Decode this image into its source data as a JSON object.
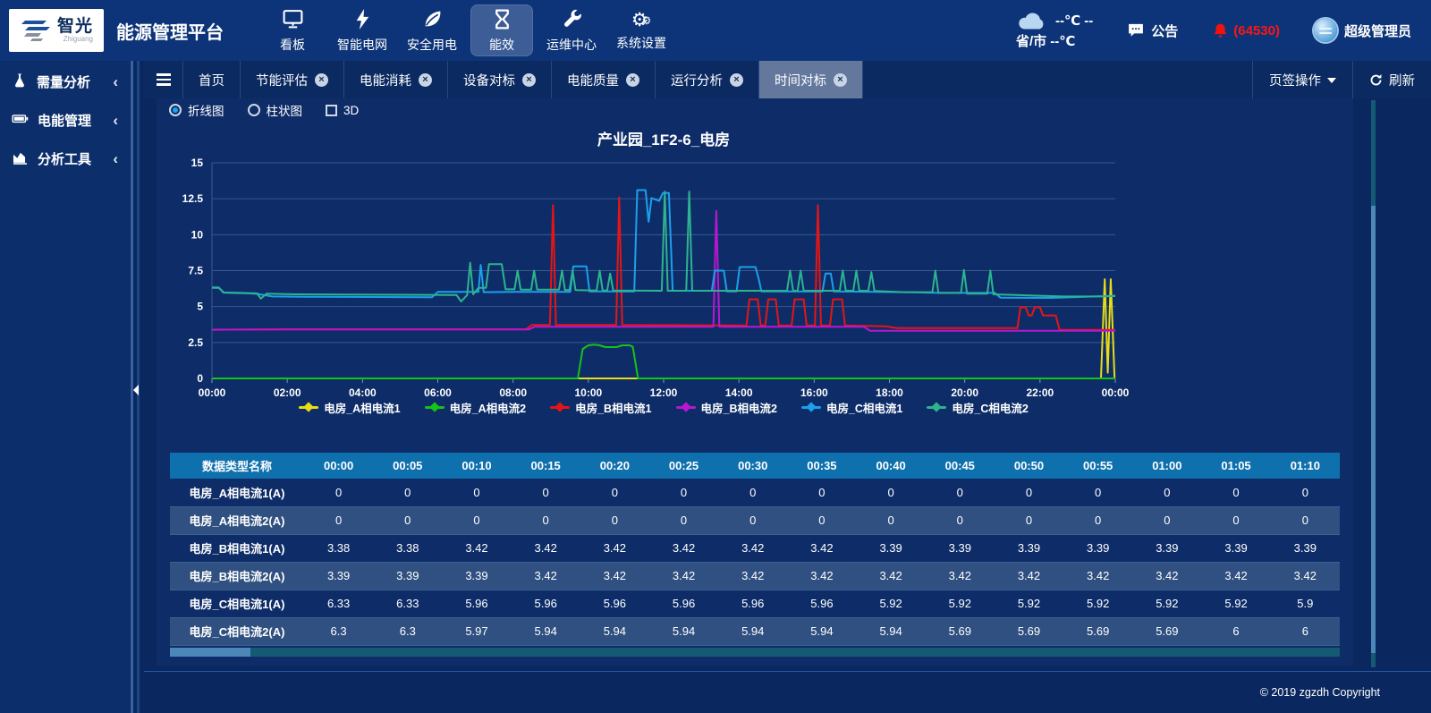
{
  "header": {
    "logo": {
      "brand": "智光",
      "brand_sub": "Zhiguang"
    },
    "app_title": "能源管理平台",
    "nav": [
      {
        "label": "看板",
        "icon": "dashboard-icon",
        "active": false
      },
      {
        "label": "智能电网",
        "icon": "bolt-icon",
        "active": false
      },
      {
        "label": "安全用电",
        "icon": "leaf-icon",
        "active": false
      },
      {
        "label": "能效",
        "icon": "hourglass-icon",
        "active": true
      },
      {
        "label": "运维中心",
        "icon": "wrench-icon",
        "active": false
      },
      {
        "label": "系统设置",
        "icon": "gears-icon",
        "active": false
      }
    ],
    "weather": {
      "line1": "--℃ --",
      "line2": "省/市 --℃"
    },
    "notice_label": "公告",
    "alarm_count": "(64530)",
    "user_name": "超级管理员"
  },
  "tabbar": {
    "tabs": [
      {
        "label": "首页",
        "closable": false,
        "active": false
      },
      {
        "label": "节能评估",
        "closable": true,
        "active": false
      },
      {
        "label": "电能消耗",
        "closable": true,
        "active": false
      },
      {
        "label": "设备对标",
        "closable": true,
        "active": false
      },
      {
        "label": "电能质量",
        "closable": true,
        "active": false
      },
      {
        "label": "运行分析",
        "closable": true,
        "active": false
      },
      {
        "label": "时间对标",
        "closable": true,
        "active": true
      }
    ],
    "actions": {
      "tab_ops": "页签操作",
      "refresh": "刷新"
    }
  },
  "sidebar": {
    "items": [
      {
        "label": "需量分析",
        "icon": "flask-icon"
      },
      {
        "label": "电能管理",
        "icon": "battery-icon"
      },
      {
        "label": "分析工具",
        "icon": "chart-icon"
      }
    ]
  },
  "controls": {
    "options": [
      {
        "label": "折线图",
        "type": "radio",
        "checked": true
      },
      {
        "label": "柱状图",
        "type": "radio",
        "checked": false
      },
      {
        "label": "3D",
        "type": "checkbox",
        "checked": false
      }
    ]
  },
  "chart_data": {
    "type": "line",
    "title": "产业园_1F2-6_电房",
    "xlim": [
      0,
      24
    ],
    "ylim": [
      0,
      15
    ],
    "y_ticks": [
      0,
      2.5,
      5,
      7.5,
      10,
      12.5,
      15
    ],
    "x_ticks": [
      "00:00",
      "02:00",
      "04:00",
      "06:00",
      "08:00",
      "10:00",
      "12:00",
      "14:00",
      "16:00",
      "18:00",
      "20:00",
      "22:00",
      "00:00"
    ],
    "grid": true,
    "legend_position": "bottom",
    "series": [
      {
        "name": "电房_A相电流1",
        "color": "#e8dc16",
        "points": [
          [
            0,
            0
          ],
          [
            23.62,
            0
          ],
          [
            23.72,
            6.9
          ],
          [
            23.8,
            0.4
          ],
          [
            23.88,
            6.9
          ],
          [
            23.98,
            0
          ],
          [
            24,
            0
          ]
        ]
      },
      {
        "name": "电房_A相电流2",
        "color": "#16c316",
        "points": [
          [
            0,
            0
          ],
          [
            9.72,
            0
          ],
          [
            9.85,
            2.05
          ],
          [
            10.0,
            2.3
          ],
          [
            10.15,
            2.35
          ],
          [
            10.3,
            2.3
          ],
          [
            10.45,
            2.18
          ],
          [
            10.75,
            2.18
          ],
          [
            10.9,
            2.3
          ],
          [
            11.1,
            2.3
          ],
          [
            11.18,
            2.2
          ],
          [
            11.32,
            0
          ],
          [
            24,
            0
          ]
        ]
      },
      {
        "name": "电房_B相电流1",
        "color": "#e81414",
        "points": [
          [
            0,
            3.38
          ],
          [
            0.6,
            3.4
          ],
          [
            2,
            3.42
          ],
          [
            8.35,
            3.42
          ],
          [
            8.5,
            3.72
          ],
          [
            8.98,
            3.72
          ],
          [
            9.06,
            12.05
          ],
          [
            9.14,
            3.72
          ],
          [
            10.74,
            3.72
          ],
          [
            10.82,
            12.6
          ],
          [
            10.9,
            3.72
          ],
          [
            14.2,
            3.68
          ],
          [
            14.28,
            5.5
          ],
          [
            14.5,
            5.5
          ],
          [
            14.58,
            3.68
          ],
          [
            14.7,
            3.68
          ],
          [
            14.78,
            5.5
          ],
          [
            14.98,
            5.5
          ],
          [
            15.06,
            3.68
          ],
          [
            15.4,
            3.68
          ],
          [
            15.48,
            5.5
          ],
          [
            15.72,
            5.5
          ],
          [
            15.8,
            3.68
          ],
          [
            16.02,
            3.68
          ],
          [
            16.1,
            12.05
          ],
          [
            16.18,
            3.68
          ],
          [
            16.42,
            3.68
          ],
          [
            16.5,
            5.5
          ],
          [
            16.74,
            5.5
          ],
          [
            16.82,
            3.68
          ],
          [
            17.9,
            3.62
          ],
          [
            18.2,
            3.5
          ],
          [
            21.4,
            3.5
          ],
          [
            21.48,
            4.95
          ],
          [
            21.62,
            4.95
          ],
          [
            21.7,
            4.38
          ],
          [
            21.78,
            4.38
          ],
          [
            21.86,
            4.95
          ],
          [
            22.0,
            4.95
          ],
          [
            22.08,
            4.38
          ],
          [
            22.42,
            4.38
          ],
          [
            22.52,
            3.38
          ],
          [
            24,
            3.38
          ]
        ]
      },
      {
        "name": "电房_B相电流2",
        "color": "#bb16cf",
        "points": [
          [
            0,
            3.39
          ],
          [
            2,
            3.41
          ],
          [
            8.42,
            3.41
          ],
          [
            8.58,
            3.6
          ],
          [
            13.32,
            3.6
          ],
          [
            13.4,
            11.65
          ],
          [
            13.48,
            3.6
          ],
          [
            17.32,
            3.6
          ],
          [
            17.48,
            3.32
          ],
          [
            24,
            3.32
          ]
        ]
      },
      {
        "name": "电房_C相电流1",
        "color": "#1ba0ea",
        "points": [
          [
            0,
            6.33
          ],
          [
            0.18,
            6.33
          ],
          [
            0.3,
            5.98
          ],
          [
            0.8,
            5.95
          ],
          [
            1.2,
            5.88
          ],
          [
            1.6,
            5.7
          ],
          [
            2.4,
            5.68
          ],
          [
            5.85,
            5.65
          ],
          [
            6.0,
            6.02
          ],
          [
            6.95,
            6.02
          ],
          [
            7.08,
            6.02
          ],
          [
            7.14,
            7.9
          ],
          [
            7.22,
            6.0
          ],
          [
            8.0,
            6.02
          ],
          [
            9.52,
            6.02
          ],
          [
            9.6,
            7.8
          ],
          [
            9.95,
            7.8
          ],
          [
            10.03,
            6.05
          ],
          [
            11.22,
            6.05
          ],
          [
            11.3,
            13.1
          ],
          [
            11.52,
            13.1
          ],
          [
            11.6,
            10.9
          ],
          [
            11.68,
            12.55
          ],
          [
            11.88,
            12.35
          ],
          [
            11.98,
            12.9
          ],
          [
            12.14,
            12.9
          ],
          [
            12.24,
            6.1
          ],
          [
            13.28,
            6.1
          ],
          [
            13.36,
            7.5
          ],
          [
            13.6,
            7.5
          ],
          [
            13.68,
            6.05
          ],
          [
            13.94,
            6.05
          ],
          [
            14.02,
            7.75
          ],
          [
            14.44,
            7.75
          ],
          [
            14.52,
            7.0
          ],
          [
            14.6,
            6.05
          ],
          [
            16.22,
            6.05
          ],
          [
            16.3,
            7.3
          ],
          [
            16.44,
            7.3
          ],
          [
            16.52,
            6.05
          ],
          [
            18.5,
            6.0
          ],
          [
            19.3,
            5.95
          ],
          [
            20.8,
            5.95
          ],
          [
            20.95,
            5.62
          ],
          [
            22.3,
            5.6
          ],
          [
            23.2,
            5.68
          ],
          [
            24,
            5.75
          ]
        ]
      },
      {
        "name": "电房_C相电流2",
        "color": "#2db48e",
        "points": [
          [
            0,
            6.3
          ],
          [
            0.18,
            6.3
          ],
          [
            0.32,
            5.97
          ],
          [
            0.7,
            5.94
          ],
          [
            1.2,
            5.92
          ],
          [
            1.3,
            5.55
          ],
          [
            1.45,
            5.9
          ],
          [
            2.2,
            5.85
          ],
          [
            5.0,
            5.82
          ],
          [
            6.5,
            5.8
          ],
          [
            6.62,
            5.35
          ],
          [
            6.78,
            5.8
          ],
          [
            6.86,
            8.05
          ],
          [
            6.94,
            5.85
          ],
          [
            7.08,
            6.3
          ],
          [
            7.28,
            6.3
          ],
          [
            7.36,
            7.95
          ],
          [
            7.7,
            7.95
          ],
          [
            7.8,
            6.2
          ],
          [
            8.04,
            6.2
          ],
          [
            8.12,
            7.5
          ],
          [
            8.2,
            6.18
          ],
          [
            8.48,
            6.18
          ],
          [
            8.56,
            7.5
          ],
          [
            8.64,
            6.18
          ],
          [
            9.22,
            6.18
          ],
          [
            9.3,
            7.5
          ],
          [
            9.38,
            6.15
          ],
          [
            9.5,
            6.15
          ],
          [
            9.58,
            7.5
          ],
          [
            9.66,
            6.15
          ],
          [
            10.22,
            6.12
          ],
          [
            10.3,
            7.5
          ],
          [
            10.38,
            6.12
          ],
          [
            10.5,
            6.12
          ],
          [
            10.58,
            7.3
          ],
          [
            10.66,
            6.12
          ],
          [
            11.95,
            6.1
          ],
          [
            12.03,
            13.0
          ],
          [
            12.11,
            6.1
          ],
          [
            12.6,
            6.1
          ],
          [
            12.68,
            13.0
          ],
          [
            12.76,
            6.1
          ],
          [
            15.28,
            6.1
          ],
          [
            15.36,
            7.5
          ],
          [
            15.44,
            6.1
          ],
          [
            15.56,
            6.1
          ],
          [
            15.64,
            7.5
          ],
          [
            15.72,
            6.1
          ],
          [
            16.68,
            6.1
          ],
          [
            16.76,
            7.5
          ],
          [
            16.84,
            6.1
          ],
          [
            17.04,
            6.1
          ],
          [
            17.12,
            7.5
          ],
          [
            17.2,
            6.1
          ],
          [
            17.44,
            6.1
          ],
          [
            17.52,
            7.4
          ],
          [
            17.6,
            6.08
          ],
          [
            18.4,
            6.0
          ],
          [
            19.14,
            6.0
          ],
          [
            19.22,
            7.5
          ],
          [
            19.3,
            5.95
          ],
          [
            19.9,
            5.95
          ],
          [
            19.98,
            7.55
          ],
          [
            20.06,
            5.9
          ],
          [
            20.6,
            5.9
          ],
          [
            20.68,
            7.5
          ],
          [
            20.76,
            5.85
          ],
          [
            21.6,
            5.78
          ],
          [
            22.6,
            5.7
          ],
          [
            23.6,
            5.7
          ],
          [
            24,
            5.73
          ]
        ]
      }
    ]
  },
  "table": {
    "header": [
      "数据类型名称",
      "00:00",
      "00:05",
      "00:10",
      "00:15",
      "00:20",
      "00:25",
      "00:30",
      "00:35",
      "00:40",
      "00:45",
      "00:50",
      "00:55",
      "01:00",
      "01:05",
      "01:10"
    ],
    "rows": [
      {
        "label": "电房_A相电流1(A)",
        "values": [
          "0",
          "0",
          "0",
          "0",
          "0",
          "0",
          "0",
          "0",
          "0",
          "0",
          "0",
          "0",
          "0",
          "0",
          "0"
        ]
      },
      {
        "label": "电房_A相电流2(A)",
        "values": [
          "0",
          "0",
          "0",
          "0",
          "0",
          "0",
          "0",
          "0",
          "0",
          "0",
          "0",
          "0",
          "0",
          "0",
          "0"
        ]
      },
      {
        "label": "电房_B相电流1(A)",
        "values": [
          "3.38",
          "3.38",
          "3.42",
          "3.42",
          "3.42",
          "3.42",
          "3.42",
          "3.42",
          "3.39",
          "3.39",
          "3.39",
          "3.39",
          "3.39",
          "3.39",
          "3.39"
        ]
      },
      {
        "label": "电房_B相电流2(A)",
        "values": [
          "3.39",
          "3.39",
          "3.39",
          "3.42",
          "3.42",
          "3.42",
          "3.42",
          "3.42",
          "3.42",
          "3.42",
          "3.42",
          "3.42",
          "3.42",
          "3.42",
          "3.42"
        ]
      },
      {
        "label": "电房_C相电流1(A)",
        "values": [
          "6.33",
          "6.33",
          "5.96",
          "5.96",
          "5.96",
          "5.96",
          "5.96",
          "5.96",
          "5.92",
          "5.92",
          "5.92",
          "5.92",
          "5.92",
          "5.92",
          "5.9"
        ]
      },
      {
        "label": "电房_C相电流2(A)",
        "values": [
          "6.3",
          "6.3",
          "5.97",
          "5.94",
          "5.94",
          "5.94",
          "5.94",
          "5.94",
          "5.94",
          "5.69",
          "5.69",
          "5.69",
          "5.69",
          "6",
          "6"
        ]
      }
    ]
  },
  "footer": {
    "copyright": "© 2019 zgzdh Copyright"
  }
}
